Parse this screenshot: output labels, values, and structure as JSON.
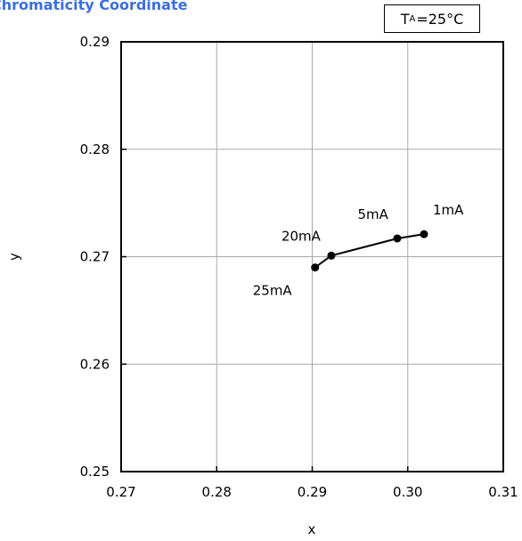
{
  "chart_data": {
    "type": "line",
    "title": "Chromaticity Coordinate",
    "condition": {
      "main": "T",
      "sub": "A",
      "value": "=25°C"
    },
    "xlabel": "x",
    "ylabel": "y",
    "xlim": [
      0.27,
      0.31
    ],
    "ylim": [
      0.25,
      0.29
    ],
    "xticks": [
      "0.27",
      "0.28",
      "0.29",
      "0.30",
      "0.31"
    ],
    "yticks": [
      "0.25",
      "0.26",
      "0.27",
      "0.28",
      "0.29"
    ],
    "grid": true,
    "series": [
      {
        "points": [
          {
            "x": 0.3017,
            "y": 0.2721,
            "label": "1mA"
          },
          {
            "x": 0.2989,
            "y": 0.2717,
            "label": "5mA"
          },
          {
            "x": 0.292,
            "y": 0.2701,
            "label": "20mA"
          },
          {
            "x": 0.2903,
            "y": 0.269,
            "label": "25mA"
          }
        ]
      }
    ]
  }
}
